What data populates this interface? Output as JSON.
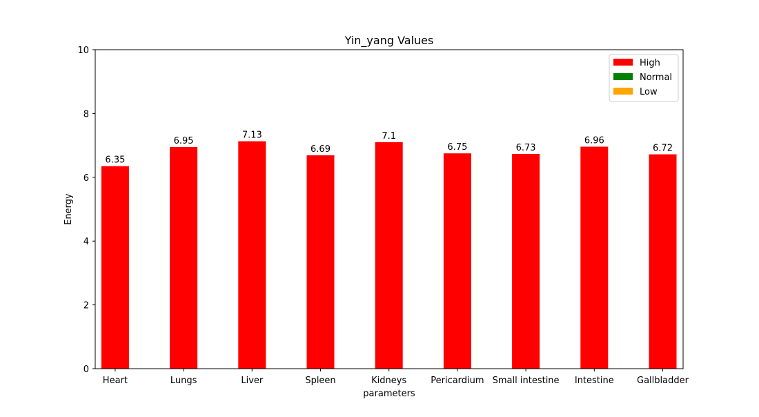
{
  "chart_data": {
    "type": "bar",
    "title": "Yin_yang Values",
    "xlabel": "parameters",
    "ylabel": "Energy",
    "ylim": [
      0,
      10
    ],
    "yticks": [
      0,
      2,
      4,
      6,
      8,
      10
    ],
    "grid": false,
    "legend_position": "top-right",
    "categories": [
      "Heart",
      "Lungs",
      "Liver",
      "Spleen",
      "Kidneys",
      "Pericardium",
      "Small intestine",
      "Intestine",
      "Gallbladder"
    ],
    "values": [
      6.35,
      6.95,
      7.13,
      6.69,
      7.1,
      6.75,
      6.73,
      6.96,
      6.72
    ],
    "value_labels": [
      "6.35",
      "6.95",
      "7.13",
      "6.69",
      "7.1",
      "6.75",
      "6.73",
      "6.96",
      "6.72"
    ],
    "bar_colors": [
      "#ff0000",
      "#ff0000",
      "#ff0000",
      "#ff0000",
      "#ff0000",
      "#ff0000",
      "#ff0000",
      "#ff0000",
      "#ff0000"
    ],
    "legend": [
      {
        "label": "High",
        "color": "#ff0000"
      },
      {
        "label": "Normal",
        "color": "#008000"
      },
      {
        "label": "Low",
        "color": "#ffa500"
      }
    ]
  }
}
